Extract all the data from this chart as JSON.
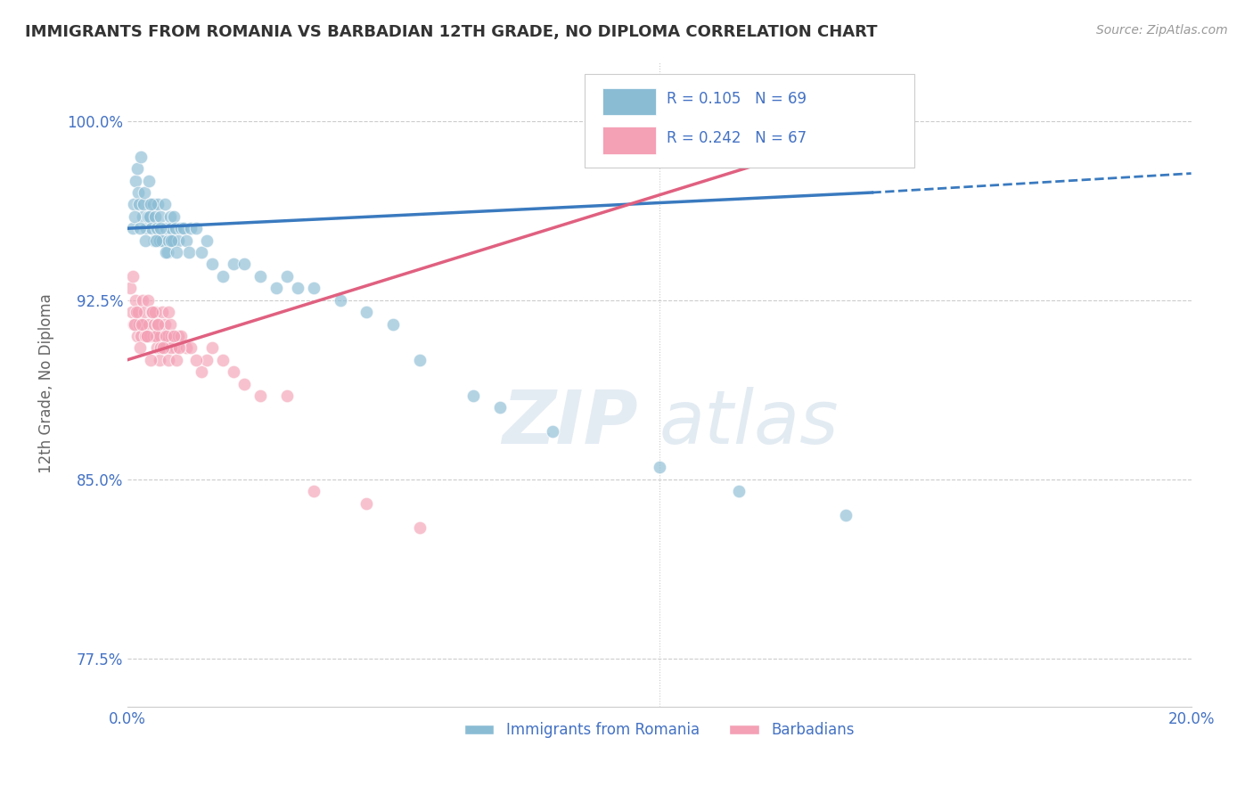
{
  "title": "IMMIGRANTS FROM ROMANIA VS BARBADIAN 12TH GRADE, NO DIPLOMA CORRELATION CHART",
  "source": "Source: ZipAtlas.com",
  "ylabel": "12th Grade, No Diploma",
  "xlim": [
    0.0,
    20.0
  ],
  "ylim": [
    75.5,
    102.5
  ],
  "yticks": [
    77.5,
    85.0,
    92.5,
    100.0
  ],
  "ytick_labels": [
    "77.5%",
    "85.0%",
    "92.5%",
    "100.0%"
  ],
  "color_romania": "#8abcd4",
  "color_barbadian": "#f4a0b5",
  "color_line_romania": "#3a7abf",
  "color_line_barbadian": "#e06080",
  "color_text": "#4472c4",
  "watermark_zip": "ZIP",
  "watermark_atlas": "atlas",
  "background_color": "#ffffff",
  "legend_label1": "Immigrants from Romania",
  "legend_label2": "Barbadians",
  "romania_x": [
    0.1,
    0.12,
    0.15,
    0.18,
    0.2,
    0.22,
    0.25,
    0.28,
    0.3,
    0.32,
    0.35,
    0.38,
    0.4,
    0.42,
    0.45,
    0.48,
    0.5,
    0.52,
    0.55,
    0.58,
    0.6,
    0.62,
    0.65,
    0.7,
    0.72,
    0.75,
    0.78,
    0.8,
    0.82,
    0.85,
    0.88,
    0.9,
    0.95,
    1.0,
    1.05,
    1.1,
    1.15,
    1.2,
    1.3,
    1.4,
    1.5,
    1.6,
    1.8,
    2.0,
    2.2,
    2.5,
    2.8,
    3.0,
    3.2,
    3.5,
    4.0,
    4.5,
    5.0,
    5.5,
    6.5,
    7.0,
    8.0,
    10.0,
    11.5,
    13.5,
    0.13,
    0.23,
    0.33,
    0.43,
    0.53,
    0.63,
    0.73,
    0.83,
    0.93
  ],
  "romania_y": [
    95.5,
    96.5,
    97.5,
    98.0,
    97.0,
    96.5,
    98.5,
    96.0,
    96.5,
    97.0,
    95.5,
    96.0,
    97.5,
    96.0,
    95.5,
    96.5,
    95.0,
    96.0,
    95.5,
    96.5,
    95.0,
    96.0,
    95.0,
    96.5,
    95.5,
    94.5,
    95.0,
    96.0,
    95.5,
    95.0,
    96.0,
    95.5,
    95.0,
    95.5,
    95.5,
    95.0,
    94.5,
    95.5,
    95.5,
    94.5,
    95.0,
    94.0,
    93.5,
    94.0,
    94.0,
    93.5,
    93.0,
    93.5,
    93.0,
    93.0,
    92.5,
    92.0,
    91.5,
    90.0,
    88.5,
    88.0,
    87.0,
    85.5,
    84.5,
    83.5,
    96.0,
    95.5,
    95.0,
    96.5,
    95.0,
    95.5,
    94.5,
    95.0,
    94.5
  ],
  "barbadian_x": [
    0.05,
    0.08,
    0.1,
    0.12,
    0.15,
    0.18,
    0.2,
    0.22,
    0.25,
    0.28,
    0.3,
    0.32,
    0.35,
    0.38,
    0.4,
    0.42,
    0.45,
    0.48,
    0.5,
    0.52,
    0.55,
    0.58,
    0.6,
    0.62,
    0.65,
    0.7,
    0.72,
    0.75,
    0.78,
    0.8,
    0.82,
    0.9,
    0.95,
    1.0,
    1.1,
    1.2,
    1.4,
    1.5,
    1.6,
    1.8,
    2.0,
    2.2,
    2.5,
    3.0,
    0.13,
    0.23,
    0.33,
    0.43,
    0.53,
    0.63,
    0.73,
    0.83,
    0.93,
    1.3,
    3.5,
    4.5,
    5.5,
    14.5,
    0.17,
    0.27,
    0.37,
    0.47,
    0.57,
    0.67,
    0.77,
    0.87,
    0.97
  ],
  "barbadian_y": [
    93.0,
    92.0,
    93.5,
    91.5,
    92.5,
    91.0,
    92.0,
    91.5,
    91.0,
    92.5,
    91.5,
    92.0,
    91.0,
    92.5,
    91.5,
    91.0,
    92.0,
    91.0,
    91.5,
    92.0,
    90.5,
    91.5,
    90.0,
    91.0,
    92.0,
    91.5,
    90.5,
    91.0,
    90.0,
    91.5,
    91.0,
    90.5,
    91.0,
    91.0,
    90.5,
    90.5,
    89.5,
    90.0,
    90.5,
    90.0,
    89.5,
    89.0,
    88.5,
    88.5,
    91.5,
    90.5,
    91.0,
    90.0,
    91.0,
    90.5,
    91.0,
    90.5,
    90.0,
    90.0,
    84.5,
    84.0,
    83.0,
    100.0,
    92.0,
    91.5,
    91.0,
    92.0,
    91.5,
    90.5,
    92.0,
    91.0,
    90.5
  ],
  "rom_line_x0": 0.0,
  "rom_line_x1": 14.0,
  "rom_line_y0": 95.5,
  "rom_line_y1": 97.0,
  "rom_dash_x0": 14.0,
  "rom_dash_x1": 20.0,
  "rom_dash_y0": 97.0,
  "rom_dash_y1": 97.8,
  "barb_line_x0": 0.0,
  "barb_line_x1": 14.5,
  "barb_line_y0": 90.0,
  "barb_line_y1": 100.0
}
